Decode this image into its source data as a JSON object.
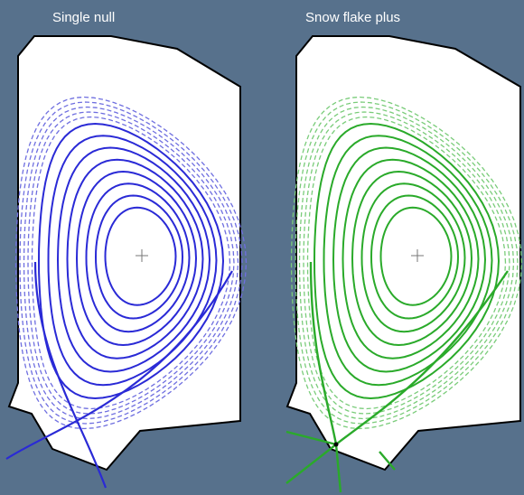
{
  "panels": [
    {
      "title": "Single null",
      "configuration": "single-null",
      "color": "#2a2ad6",
      "sol_color": "#6f6fe0"
    },
    {
      "title": "Snow flake plus",
      "configuration": "snowflake-plus",
      "color": "#2aaa2a",
      "sol_color": "#7acc7a"
    }
  ],
  "colors": {
    "background": "#57718c",
    "vessel_fill": "#ffffff",
    "vessel_outline": "#000000",
    "title_text": "#ffffff"
  },
  "closed_flux_surfaces_per_panel": 8,
  "open_flux_surfaces_per_panel": 5
}
